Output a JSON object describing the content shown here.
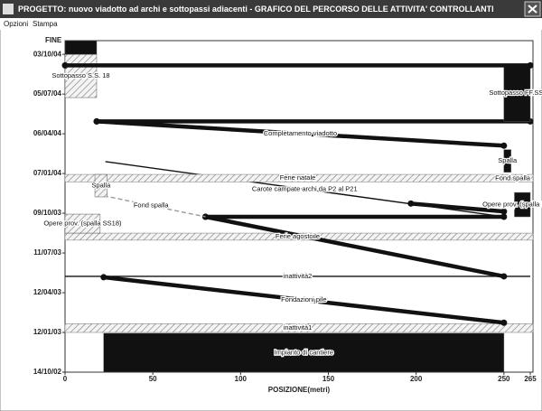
{
  "window": {
    "title": "PROGETTO: nuovo viadotto ad archi e sottopassi adiacenti - GRAFICO DEL PERCORSO DELLE ATTIVITA' CONTROLLANTI",
    "menu": [
      "Opzioni",
      "Stampa"
    ]
  },
  "chart_data": {
    "type": "time-location",
    "x_label": "POSIZIONE(metri)",
    "top_label": "FINE",
    "color": "#111111",
    "xlim": [
      0,
      265
    ],
    "xticks": [
      0,
      50,
      100,
      150,
      200,
      250,
      265
    ],
    "ylim": [
      "2002-10-14",
      "2004-11-03"
    ],
    "yticks": [
      {
        "value": "2002-10-14",
        "label": "14/10/02"
      },
      {
        "value": "2003-01-12",
        "label": "12/01/03"
      },
      {
        "value": "2003-04-12",
        "label": "12/04/03"
      },
      {
        "value": "2003-07-11",
        "label": "11/07/03"
      },
      {
        "value": "2003-10-09",
        "label": "09/10/03"
      },
      {
        "value": "2004-01-07",
        "label": "07/01/04"
      },
      {
        "value": "2004-04-06",
        "label": "06/04/04"
      },
      {
        "value": "2004-07-05",
        "label": "05/07/04"
      },
      {
        "value": "2004-10-03",
        "label": "03/10/04"
      }
    ],
    "activities": [
      {
        "kind": "block",
        "label": "Impianto di cantiere",
        "x": [
          22,
          250
        ],
        "dates": [
          "2002-10-14",
          "2003-01-10"
        ]
      },
      {
        "kind": "band",
        "label": "inattività1",
        "dates": [
          "2003-01-12",
          "2003-02-01"
        ]
      },
      {
        "kind": "line",
        "label": "Fondazioni pile",
        "x": [
          22,
          250
        ],
        "dates": [
          "2003-05-17",
          "2003-02-03"
        ]
      },
      {
        "kind": "thin",
        "label": "inattività2",
        "x": [
          0,
          265
        ],
        "dates": [
          "2003-05-19",
          "2003-05-19"
        ]
      },
      {
        "kind": "band",
        "label": "Ferie agostoile",
        "dates": [
          "2003-08-09",
          "2003-08-25"
        ]
      },
      {
        "kind": "line",
        "x": [
          80,
          250
        ],
        "dates": [
          "2003-10-01",
          "2003-05-19"
        ]
      },
      {
        "kind": "line",
        "x": [
          80,
          250
        ],
        "dates": [
          "2003-10-01",
          "2003-10-01"
        ]
      },
      {
        "kind": "thin",
        "label": "Carote campate archi da P2 al P21",
        "x": [
          23,
          250
        ],
        "dates": [
          "2004-02-03",
          "2003-10-01"
        ]
      },
      {
        "kind": "line",
        "x": [
          197,
          250
        ],
        "dates": [
          "2003-10-31",
          "2003-10-13"
        ]
      },
      {
        "kind": "dashed",
        "label": "Fond spalla",
        "x": [
          18,
          80
        ],
        "dates": [
          "2003-11-21",
          "2003-10-01"
        ]
      },
      {
        "kind": "band",
        "label": "Ferie natale",
        "dates": [
          "2003-12-19",
          "2004-01-05"
        ]
      },
      {
        "kind": "hatchblock",
        "label": "Spalla",
        "x": [
          17,
          24
        ],
        "dates": [
          "2003-11-15",
          "2004-01-05"
        ]
      },
      {
        "kind": "hatchblock",
        "label": "Opere prov. (spalla SS18)",
        "x": [
          0,
          20
        ],
        "dates": [
          "2003-08-25",
          "2003-10-07"
        ]
      },
      {
        "kind": "line",
        "label": "Completamento viadotto",
        "x": [
          18,
          250
        ],
        "dates": [
          "2004-05-04",
          "2004-03-10"
        ]
      },
      {
        "kind": "line",
        "x": [
          18,
          265
        ],
        "dates": [
          "2004-05-04",
          "2004-05-04"
        ]
      },
      {
        "kind": "block",
        "label": "Sottopasso FF.SS.",
        "x": [
          250,
          265
        ],
        "dates": [
          "2004-05-04",
          "2004-09-10"
        ]
      },
      {
        "kind": "hatchblock",
        "label": "Sottopasso S.S. 18",
        "x": [
          0,
          18
        ],
        "dates": [
          "2004-06-27",
          "2004-10-03"
        ]
      },
      {
        "kind": "block",
        "x": [
          0,
          18
        ],
        "dates": [
          "2004-10-03",
          "2004-11-03"
        ]
      },
      {
        "kind": "line",
        "x": [
          0,
          265
        ],
        "dates": [
          "2004-09-08",
          "2004-09-08"
        ]
      },
      {
        "kind": "block",
        "label": "Spalla",
        "x": [
          250,
          254
        ],
        "dates": [
          "2004-01-10",
          "2004-03-01"
        ]
      },
      {
        "kind": "block",
        "label": "Opere prov. (spalla FF.SS)",
        "x": [
          256,
          265
        ],
        "dates": [
          "2003-10-01",
          "2003-11-25"
        ]
      },
      {
        "kind": "thin",
        "label": "Fond.spalla",
        "x": [
          245,
          265
        ],
        "dates": [
          "2003-12-27",
          "2003-12-27"
        ]
      }
    ]
  }
}
